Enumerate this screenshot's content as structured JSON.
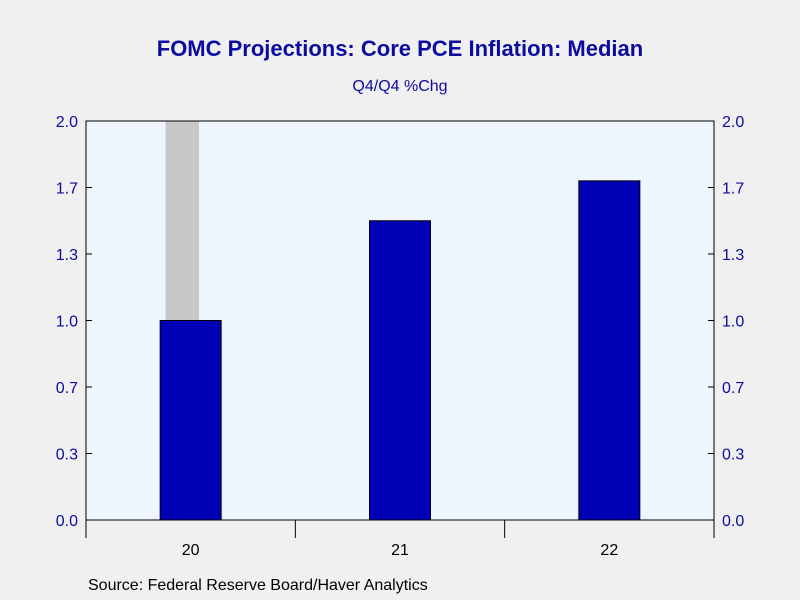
{
  "chart_data": {
    "type": "bar",
    "title": "FOMC Projections: Core PCE Inflation: Median",
    "subtitle": "Q4/Q4 %Chg",
    "categories": [
      "20",
      "21",
      "22"
    ],
    "values": [
      1.0,
      1.5,
      1.7
    ],
    "ylim": [
      0.0,
      2.0
    ],
    "yticks": [
      "2.0",
      "1.7",
      "1.3",
      "1.0",
      "0.7",
      "0.3",
      "0.0"
    ],
    "ytick_values": [
      2.0,
      1.6667,
      1.3333,
      1.0,
      0.6667,
      0.3333,
      0.0
    ],
    "recession_shading": {
      "start": 19.88,
      "end": 20.04
    },
    "colors": {
      "bar": "#0000b4",
      "plot_background": "#eef5ff",
      "recession": "#c8c8c8",
      "text": "#0b0ba0"
    },
    "source": "Source:  Federal Reserve Board/Haver Analytics"
  }
}
